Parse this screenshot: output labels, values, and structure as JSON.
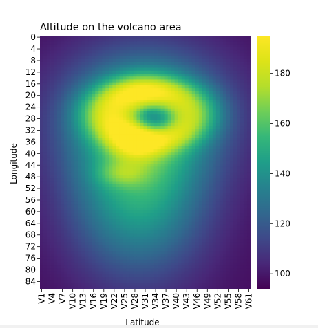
{
  "chart_data": {
    "type": "heatmap",
    "title": "Altitude on the volcano area",
    "xlabel": "Latitude",
    "ylabel": "Longitude",
    "x_tick_labels": [
      "V1",
      "V4",
      "V7",
      "V10",
      "V13",
      "V16",
      "V19",
      "V22",
      "V25",
      "V28",
      "V31",
      "V34",
      "V37",
      "V40",
      "V43",
      "V46",
      "V49",
      "V52",
      "V55",
      "V58",
      "V61"
    ],
    "y_tick_labels": [
      "0",
      "4",
      "8",
      "12",
      "16",
      "20",
      "24",
      "28",
      "32",
      "36",
      "40",
      "44",
      "48",
      "52",
      "56",
      "60",
      "64",
      "68",
      "72",
      "76",
      "80",
      "84"
    ],
    "n_columns": 61,
    "n_rows": 87,
    "colorbar": {
      "min": 94,
      "max": 195,
      "ticks": [
        "100",
        "120",
        "140",
        "160",
        "180"
      ],
      "tick_values": [
        100,
        120,
        140,
        160,
        180
      ]
    },
    "colormap": "viridis",
    "features": [
      {
        "type": "base",
        "value": 97
      },
      {
        "type": "mound",
        "center_col": 28,
        "center_row": 54,
        "sigma_col": 14,
        "sigma_row": 20,
        "amp": 48
      },
      {
        "type": "mound",
        "center_col": 30,
        "center_row": 26,
        "sigma_col": 17,
        "sigma_row": 16,
        "amp": 48
      },
      {
        "type": "ridge",
        "center_col": 31,
        "center_row": 26,
        "radius_col": 12,
        "radius_row": 8,
        "width": 4,
        "amp": 40
      },
      {
        "type": "crater",
        "center_col": 33,
        "center_row": 29,
        "sigma_col": 4.5,
        "sigma_row": 3.5,
        "amp": -40
      },
      {
        "type": "peak",
        "center_col": 29,
        "center_row": 20,
        "sigma_col": 6,
        "sigma_row": 4,
        "amp": 12
      },
      {
        "type": "lobe",
        "center_col": 27,
        "center_row": 37,
        "sigma_col": 5,
        "sigma_row": 4,
        "amp": 20
      },
      {
        "type": "lobe",
        "center_col": 23,
        "center_row": 47,
        "sigma_col": 5,
        "sigma_row": 3,
        "amp": 16
      }
    ]
  }
}
